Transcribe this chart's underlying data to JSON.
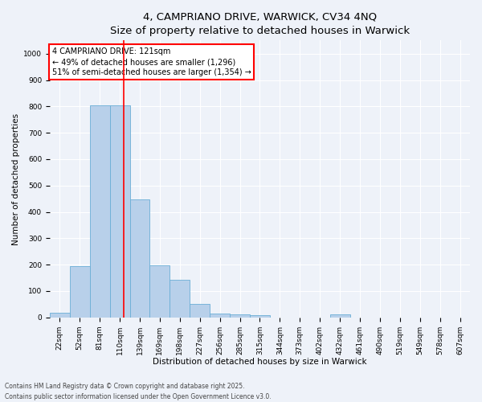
{
  "title_line1": "4, CAMPRIANO DRIVE, WARWICK, CV34 4NQ",
  "title_line2": "Size of property relative to detached houses in Warwick",
  "xlabel": "Distribution of detached houses by size in Warwick",
  "ylabel": "Number of detached properties",
  "categories": [
    "22sqm",
    "52sqm",
    "81sqm",
    "110sqm",
    "139sqm",
    "169sqm",
    "198sqm",
    "227sqm",
    "256sqm",
    "285sqm",
    "315sqm",
    "344sqm",
    "373sqm",
    "402sqm",
    "432sqm",
    "461sqm",
    "490sqm",
    "519sqm",
    "549sqm",
    "578sqm",
    "607sqm"
  ],
  "values": [
    18,
    193,
    805,
    805,
    447,
    197,
    143,
    50,
    15,
    10,
    8,
    0,
    0,
    0,
    10,
    0,
    0,
    0,
    0,
    0,
    0
  ],
  "bar_color": "#b8d0ea",
  "bar_edge_color": "#6aaed6",
  "background_color": "#eef2f9",
  "grid_color": "#ffffff",
  "vline_color": "red",
  "vline_position": 3.2,
  "annotation_text": "4 CAMPRIANO DRIVE: 121sqm\n← 49% of detached houses are smaller (1,296)\n51% of semi-detached houses are larger (1,354) →",
  "annotation_box_facecolor": "white",
  "annotation_box_edgecolor": "red",
  "ylim": [
    0,
    1050
  ],
  "yticks": [
    0,
    100,
    200,
    300,
    400,
    500,
    600,
    700,
    800,
    900,
    1000
  ],
  "footnote": "Contains HM Land Registry data © Crown copyright and database right 2025.\nContains public sector information licensed under the Open Government Licence v3.0.",
  "title_fontsize": 9.5,
  "axis_label_fontsize": 7.5,
  "tick_fontsize": 6.5,
  "annotation_fontsize": 7,
  "footnote_fontsize": 5.5
}
